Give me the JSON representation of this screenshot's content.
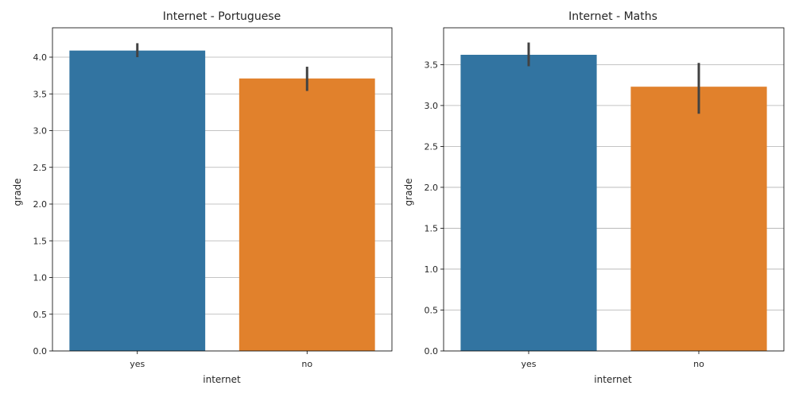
{
  "chart_data": [
    {
      "type": "bar",
      "title": "Internet - Portuguese",
      "xlabel": "internet",
      "ylabel": "grade",
      "categories": [
        "yes",
        "no"
      ],
      "values": [
        4.09,
        3.71
      ],
      "error_low": [
        4.0,
        3.54
      ],
      "error_high": [
        4.19,
        3.87
      ],
      "colors": [
        "#3274a1",
        "#e1812c"
      ],
      "ylim": [
        0,
        4.4
      ],
      "yticks": [
        0,
        0.5,
        1,
        1.5,
        2,
        2.5,
        3,
        3.5,
        4
      ],
      "ytick_labels": [
        "0.0",
        "0.5",
        "1.0",
        "1.5",
        "2.0",
        "2.5",
        "3.0",
        "3.5",
        "4.0"
      ],
      "grid": "y",
      "error_color": "#424242"
    },
    {
      "type": "bar",
      "title": "Internet - Maths",
      "xlabel": "internet",
      "ylabel": "grade",
      "categories": [
        "yes",
        "no"
      ],
      "values": [
        3.62,
        3.23
      ],
      "error_low": [
        3.48,
        2.9
      ],
      "error_high": [
        3.77,
        3.52
      ],
      "colors": [
        "#3274a1",
        "#e1812c"
      ],
      "ylim": [
        0,
        3.95
      ],
      "yticks": [
        0,
        0.5,
        1,
        1.5,
        2,
        2.5,
        3,
        3.5
      ],
      "ytick_labels": [
        "0.0",
        "0.5",
        "1.0",
        "1.5",
        "2.0",
        "2.5",
        "3.0",
        "3.5"
      ],
      "grid": "y",
      "error_color": "#424242"
    }
  ]
}
